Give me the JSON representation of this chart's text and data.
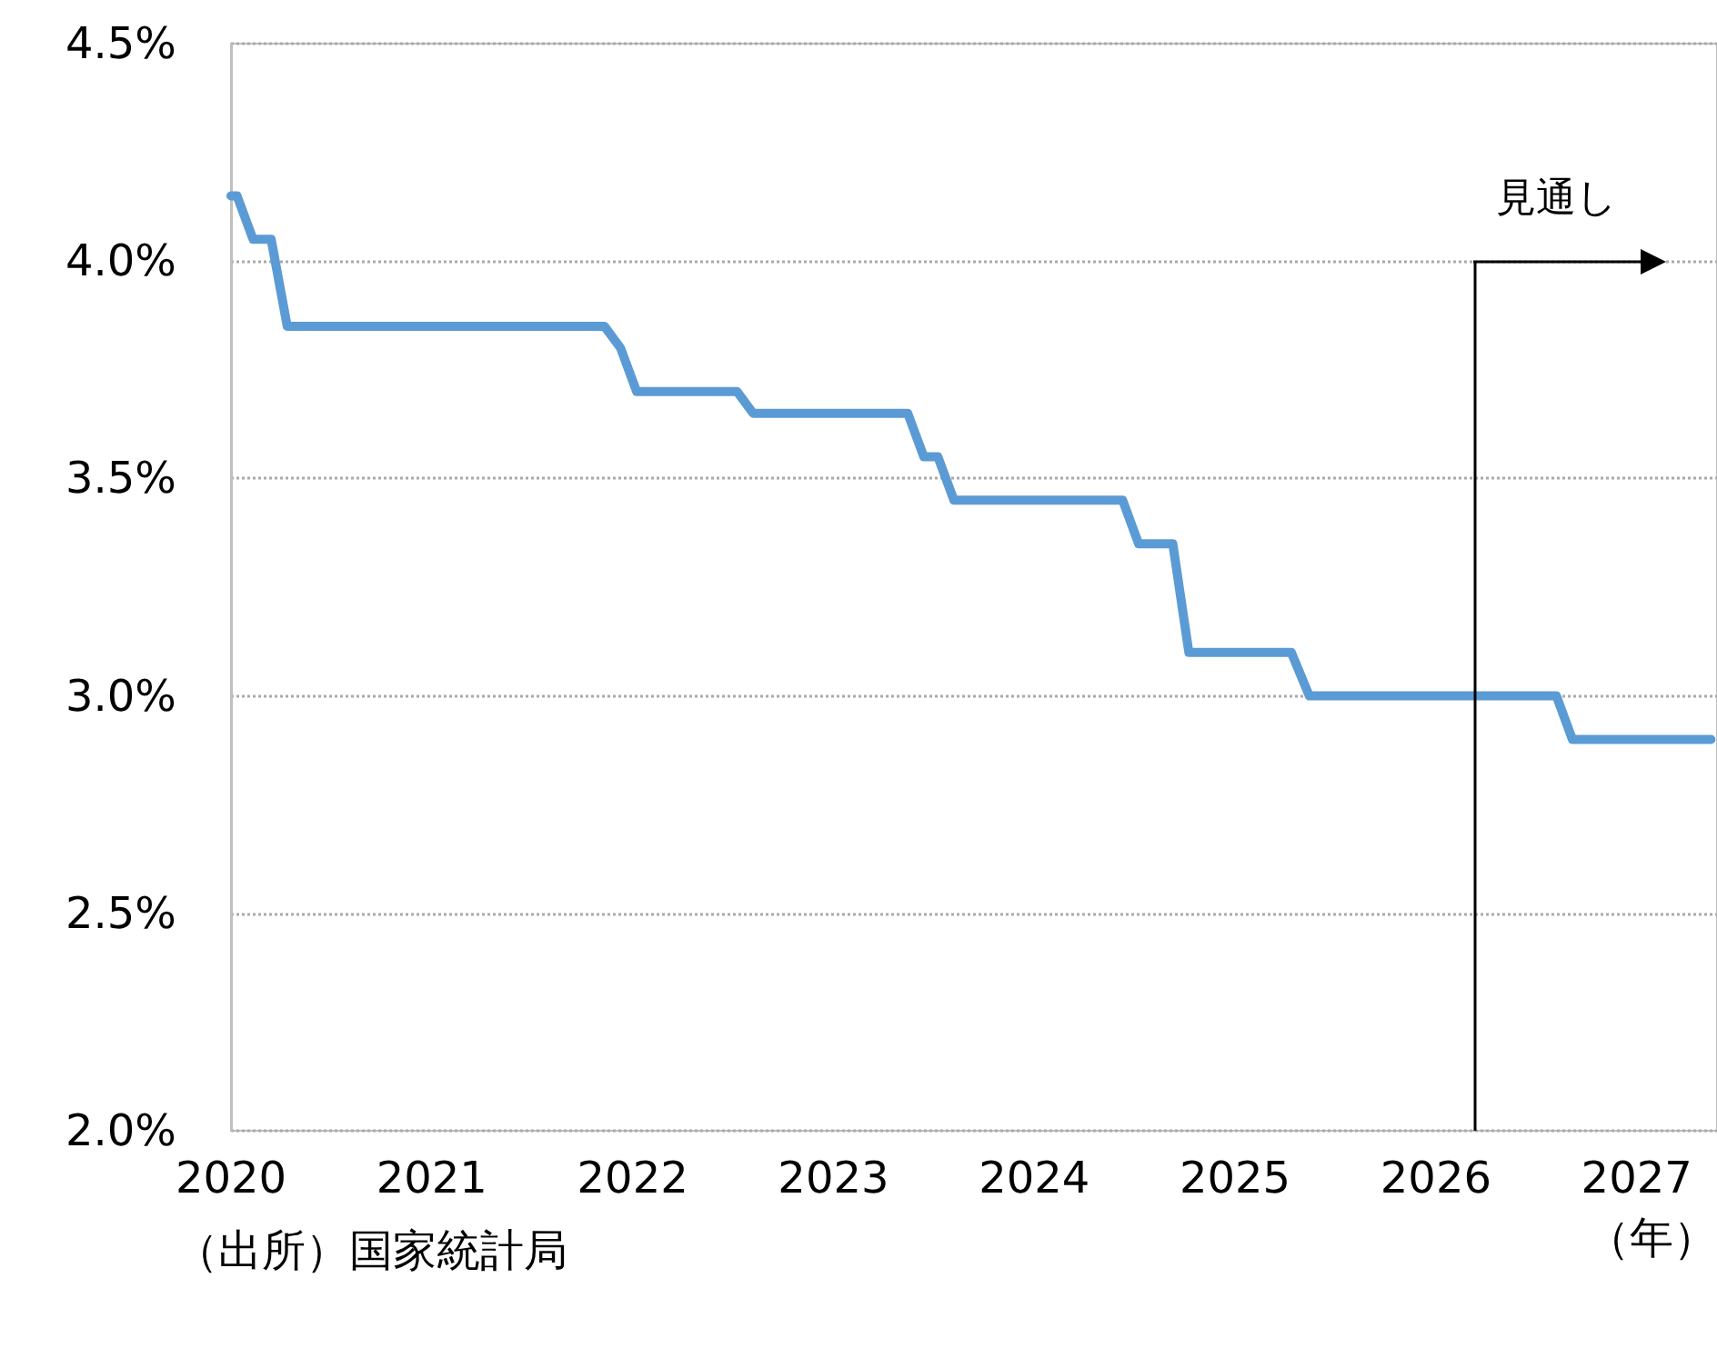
{
  "chart_data": {
    "type": "line",
    "xlabel": "（年）",
    "x": [
      2020,
      2020.03,
      2020.11,
      2020.2,
      2020.28,
      2021.86,
      2021.94,
      2022.02,
      2022.52,
      2022.6,
      2023.37,
      2023.45,
      2023.52,
      2023.6,
      2024.44,
      2024.52,
      2024.69,
      2024.77,
      2025.28,
      2025.37,
      2026.6,
      2026.68,
      2027.37
    ],
    "series": [
      {
        "color": "#5b9bd5",
        "values": [
          4.15,
          4.15,
          4.05,
          4.05,
          3.85,
          3.85,
          3.8,
          3.7,
          3.7,
          3.65,
          3.65,
          3.55,
          3.55,
          3.45,
          3.45,
          3.35,
          3.35,
          3.1,
          3.1,
          3.0,
          3.0,
          2.9,
          2.9
        ]
      }
    ],
    "xlim": [
      2020,
      2027.4
    ],
    "xticks": [
      2020,
      2021,
      2022,
      2023,
      2024,
      2025,
      2026,
      2027
    ],
    "ylim": [
      2.0,
      4.5
    ],
    "yticks": [
      {
        "value": 2.0,
        "label": "2.0%"
      },
      {
        "value": 2.5,
        "label": "2.5%"
      },
      {
        "value": 3.0,
        "label": "3.0%"
      },
      {
        "value": 3.5,
        "label": "3.5%"
      },
      {
        "value": 4.0,
        "label": "4.0%"
      },
      {
        "value": 4.5,
        "label": "4.5%"
      }
    ],
    "grid": "y",
    "marker": "none",
    "line_style": "solid",
    "ref_lines": [
      {
        "axis": "x",
        "value": 2026.19,
        "label": "見通し",
        "color": "#000000"
      }
    ],
    "annotations": [
      "（出所）国家統計局"
    ]
  }
}
